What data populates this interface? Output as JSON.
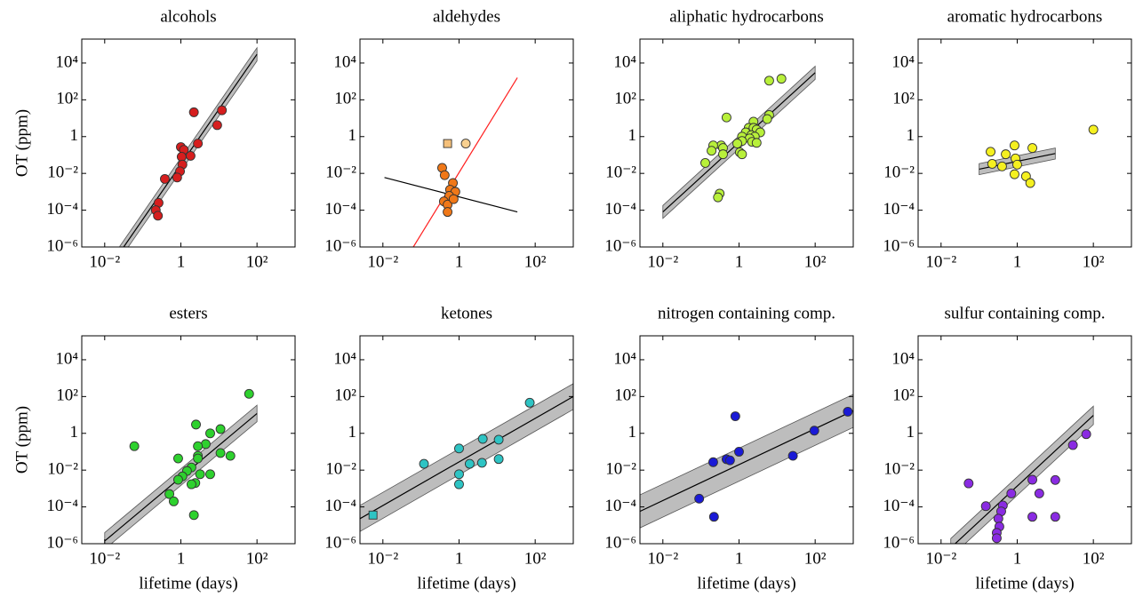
{
  "chart_data": [
    {
      "type": "scatter",
      "title": "alcohols",
      "ylabel": "OT (ppm)",
      "log": true,
      "xlim": [
        0.0025,
        1000
      ],
      "ylim": [
        1e-06,
        200000
      ],
      "xticks": [
        {
          "value": 0.01,
          "label": "10⁻²"
        },
        1,
        {
          "value": 100,
          "label": "10²"
        }
      ],
      "yticks": [
        {
          "value": 1e-06,
          "label": "10⁻⁶"
        },
        {
          "value": 0.0001,
          "label": "10⁻⁴"
        },
        {
          "value": 0.01,
          "label": "10⁻²"
        },
        1,
        {
          "value": 100,
          "label": "10²"
        },
        {
          "value": 10000,
          "label": "10⁴"
        }
      ],
      "points": [
        {
          "marker": "circle",
          "color": "#d61e1e",
          "x": [
            2.2,
            12,
            9,
            2.8,
            1,
            1.2,
            1.8,
            1.05,
            1.1,
            0.95,
            0.8,
            0.38,
            0.26,
            0.22,
            0.25
          ],
          "y": [
            21,
            27,
            4.2,
            0.42,
            0.27,
            0.19,
            0.09,
            0.08,
            0.03,
            0.013,
            0.006,
            0.005,
            0.00025,
            0.0001,
            5e-05
          ]
        }
      ],
      "fit": {
        "color": "#000",
        "x": [
          0.025,
          100
        ],
        "y": [
          5e-07,
          30000
        ],
        "lower": [
          2.2e-07,
          13000
        ],
        "upper": [
          1.1e-06,
          67000
        ]
      }
    },
    {
      "type": "scatter",
      "title": "aldehydes",
      "log": true,
      "xlim": [
        0.0025,
        1000
      ],
      "ylim": [
        1e-06,
        200000
      ],
      "xticks": [
        {
          "value": 0.01,
          "label": "10⁻²"
        },
        1,
        {
          "value": 100,
          "label": "10²"
        }
      ],
      "yticks": [
        {
          "value": 1e-06,
          "label": "10⁻⁶"
        },
        {
          "value": 0.0001,
          "label": "10⁻⁴"
        },
        {
          "value": 0.01,
          "label": "10⁻²"
        },
        1,
        {
          "value": 100,
          "label": "10²"
        },
        {
          "value": 10000,
          "label": "10⁴"
        }
      ],
      "points": [
        {
          "marker": "circle",
          "color": "#f07818",
          "x": [
            0.36,
            0.42,
            0.69,
            0.58,
            0.8,
            0.55,
            0.4,
            0.5,
            0.5,
            0.72
          ],
          "y": [
            0.02,
            0.008,
            0.003,
            0.0013,
            0.001,
            0.0006,
            0.0003,
            0.0002,
            8e-05,
            0.0004
          ]
        },
        {
          "marker": "square",
          "color": "#f5c07a",
          "x": [
            0.5
          ],
          "y": [
            0.42
          ]
        },
        {
          "marker": "circle",
          "color": "#f8d090",
          "x": [
            1.5
          ],
          "y": [
            0.42
          ]
        }
      ],
      "fit": {
        "color": "#000",
        "x": [
          0.011,
          34
        ],
        "y": [
          0.006,
          8e-05
        ]
      },
      "fit2": {
        "color": "#ff2020",
        "x": [
          0.063,
          34
        ],
        "y": [
          1e-06,
          1600
        ]
      }
    },
    {
      "type": "scatter",
      "title": "aliphatic hydrocarbons",
      "log": true,
      "xlim": [
        0.0025,
        1000
      ],
      "ylim": [
        1e-06,
        200000
      ],
      "xticks": [
        {
          "value": 0.01,
          "label": "10⁻²"
        },
        1,
        {
          "value": 100,
          "label": "10²"
        }
      ],
      "yticks": [
        {
          "value": 1e-06,
          "label": "10⁻⁶"
        },
        {
          "value": 0.0001,
          "label": "10⁻⁴"
        },
        {
          "value": 0.01,
          "label": "10⁻²"
        },
        1,
        {
          "value": 100,
          "label": "10²"
        },
        {
          "value": 10000,
          "label": "10⁴"
        }
      ],
      "points": [
        {
          "marker": "circle",
          "color": "#b8f03a",
          "x": [
            0.47,
            6.2,
            5.5,
            2.4,
            1.8,
            2.4,
            2.9,
            3.6,
            1.5,
            2.1,
            1.2,
            2.6,
            1.9,
            1.2,
            2.2,
            2.9,
            0.9,
            0.34,
            0.21,
            0.38,
            0.19,
            0.38,
            1.05,
            1.2,
            0.13,
            0.31,
            0.28,
            6.2,
            13
          ],
          "y": [
            11,
            15,
            9,
            6.5,
            3,
            3,
            2.4,
            1.7,
            1.7,
            1.2,
            1,
            1,
            0.8,
            0.58,
            0.52,
            0.46,
            0.42,
            0.33,
            0.33,
            0.24,
            0.17,
            0.11,
            0.14,
            0.11,
            0.037,
            0.0008,
            0.0005,
            1100,
            1400
          ]
        }
      ],
      "fit": {
        "color": "#000",
        "x": [
          0.01,
          100
        ],
        "y": [
          8e-05,
          3000
        ],
        "lower": [
          3.6e-05,
          1300
        ],
        "upper": [
          0.00018,
          6700
        ]
      }
    },
    {
      "type": "scatter",
      "title": "aromatic hydrocarbons",
      "log": true,
      "xlim": [
        0.0025,
        1000
      ],
      "ylim": [
        1e-06,
        200000
      ],
      "xticks": [
        {
          "value": 0.01,
          "label": "10⁻²"
        },
        1,
        {
          "value": 100,
          "label": "10²"
        }
      ],
      "yticks": [
        {
          "value": 1e-06,
          "label": "10⁻⁶"
        },
        {
          "value": 0.0001,
          "label": "10⁻⁴"
        },
        {
          "value": 0.01,
          "label": "10⁻²"
        },
        1,
        {
          "value": 100,
          "label": "10²"
        },
        {
          "value": 10000,
          "label": "10⁴"
        }
      ],
      "points": [
        {
          "marker": "circle",
          "color": "#f5f020",
          "x": [
            100,
            0.2,
            0.85,
            2.5,
            0.5,
            0.9,
            0.22,
            0.4,
            1,
            0.85,
            1.7,
            2.2
          ],
          "y": [
            2.4,
            0.15,
            0.33,
            0.24,
            0.11,
            0.065,
            0.033,
            0.024,
            0.03,
            0.009,
            0.007,
            0.003
          ]
        }
      ],
      "fit": {
        "color": "#000",
        "x": [
          0.1,
          10
        ],
        "y": [
          0.017,
          0.12
        ],
        "lower": [
          0.0085,
          0.06
        ],
        "upper": [
          0.034,
          0.24
        ]
      }
    },
    {
      "type": "scatter",
      "title": "esters",
      "ylabel": "OT (ppm)",
      "xlabel": "lifetime (days)",
      "log": true,
      "xlim": [
        0.0025,
        1000
      ],
      "ylim": [
        1e-06,
        200000
      ],
      "xticks": [
        {
          "value": 0.01,
          "label": "10⁻²"
        },
        1,
        {
          "value": 100,
          "label": "10²"
        }
      ],
      "yticks": [
        {
          "value": 1e-06,
          "label": "10⁻⁶"
        },
        {
          "value": 0.0001,
          "label": "10⁻⁴"
        },
        {
          "value": 0.01,
          "label": "10⁻²"
        },
        1,
        {
          "value": 100,
          "label": "10²"
        },
        {
          "value": 10000,
          "label": "10⁴"
        }
      ],
      "points": [
        {
          "marker": "circle",
          "color": "#2ed12e",
          "x": [
            62,
            11,
            2.5,
            5.9,
            4.5,
            2.8,
            2.8,
            0.06,
            0.85,
            2.8,
            11,
            20,
            5.9,
            3.2,
            1.9,
            1.45,
            1.1,
            0.85,
            2.4,
            1.9,
            0.5,
            0.65,
            2.2
          ],
          "y": [
            140,
            1.7,
            3,
            1,
            0.26,
            0.2,
            0.06,
            0.2,
            0.043,
            0.043,
            0.085,
            0.06,
            0.006,
            0.006,
            0.014,
            0.009,
            0.0046,
            0.003,
            0.002,
            0.0017,
            0.0005,
            0.0002,
            3.6e-05
          ]
        }
      ],
      "fit": {
        "color": "#000",
        "x": [
          0.01,
          100
        ],
        "y": [
          1.4e-06,
          12
        ],
        "lower": [
          5e-07,
          4.3
        ],
        "upper": [
          4e-06,
          34
        ]
      }
    },
    {
      "type": "scatter",
      "title": "ketones",
      "xlabel": "lifetime (days)",
      "log": true,
      "xlim": [
        0.0025,
        1000
      ],
      "ylim": [
        1e-06,
        200000
      ],
      "xticks": [
        {
          "value": 0.01,
          "label": "10⁻²"
        },
        1,
        {
          "value": 100,
          "label": "10²"
        }
      ],
      "yticks": [
        {
          "value": 1e-06,
          "label": "10⁻⁶"
        },
        {
          "value": 0.0001,
          "label": "10⁻⁴"
        },
        {
          "value": 0.01,
          "label": "10⁻²"
        },
        1,
        {
          "value": 100,
          "label": "10²"
        },
        {
          "value": 10000,
          "label": "10⁴"
        }
      ],
      "points": [
        {
          "marker": "circle",
          "color": "#2ec4c4",
          "x": [
            72,
            4.2,
            11,
            1,
            0.12,
            1.9,
            4,
            11,
            1,
            1
          ],
          "y": [
            46,
            0.5,
            0.45,
            0.15,
            0.022,
            0.022,
            0.025,
            0.04,
            0.006,
            0.0017
          ]
        },
        {
          "marker": "square",
          "color": "#2ec4c4",
          "x": [
            0.0055
          ],
          "y": [
            3.6e-05
          ]
        }
      ],
      "fit": {
        "color": "#000",
        "x": [
          0.0025,
          1000
        ],
        "y": [
          2.3e-05,
          100
        ],
        "lower": [
          4.6e-06,
          20
        ],
        "upper": [
          0.00012,
          500
        ]
      }
    },
    {
      "type": "scatter",
      "title": "nitrogen containing comp.",
      "xlabel": "lifetime (days)",
      "log": true,
      "xlim": [
        0.0025,
        1000
      ],
      "ylim": [
        1e-06,
        200000
      ],
      "xticks": [
        {
          "value": 0.01,
          "label": "10⁻²"
        },
        1,
        {
          "value": 100,
          "label": "10²"
        }
      ],
      "yticks": [
        {
          "value": 1e-06,
          "label": "10⁻⁶"
        },
        {
          "value": 0.0001,
          "label": "10⁻⁴"
        },
        {
          "value": 0.01,
          "label": "10⁻²"
        },
        1,
        {
          "value": 100,
          "label": "10²"
        },
        {
          "value": 10000,
          "label": "10⁴"
        }
      ],
      "points": [
        {
          "marker": "circle",
          "color": "#1a1ad6",
          "x": [
            0.8,
            720,
            95,
            1,
            0.47,
            0.58,
            0.21,
            26,
            0.09,
            0.22
          ],
          "y": [
            8.5,
            15,
            1.4,
            0.1,
            0.039,
            0.034,
            0.027,
            0.06,
            0.00028,
            2.9e-05
          ]
        }
      ],
      "fit": {
        "color": "#000",
        "x": [
          0.0025,
          1000
        ],
        "y": [
          5.7e-05,
          17
        ],
        "lower": [
          7.2e-06,
          2.1
        ],
        "upper": [
          0.00045,
          130
        ]
      }
    },
    {
      "type": "scatter",
      "title": "sulfur containing comp.",
      "xlabel": "lifetime (days)",
      "log": true,
      "xlim": [
        0.0025,
        1000
      ],
      "ylim": [
        1e-06,
        200000
      ],
      "xticks": [
        {
          "value": 0.01,
          "label": "10⁻²"
        },
        1,
        {
          "value": 100,
          "label": "10²"
        }
      ],
      "yticks": [
        {
          "value": 1e-06,
          "label": "10⁻⁶"
        },
        {
          "value": 0.0001,
          "label": "10⁻⁴"
        },
        {
          "value": 0.01,
          "label": "10⁻²"
        },
        1,
        {
          "value": 100,
          "label": "10²"
        },
        {
          "value": 10000,
          "label": "10⁴"
        }
      ],
      "points": [
        {
          "marker": "circle",
          "color": "#8a2be2",
          "x": [
            65,
            29,
            0.053,
            2.5,
            10,
            0.7,
            3.8,
            0.15,
            0.42,
            0.38,
            0.32,
            0.34,
            0.29,
            0.29,
            2.5,
            10
          ],
          "y": [
            0.9,
            0.23,
            0.0019,
            0.003,
            0.0029,
            0.00054,
            0.00054,
            0.00011,
            0.00012,
            5.7e-05,
            2.3e-05,
            8.5e-06,
            3.9e-06,
            2e-06,
            2.9e-05,
            2.9e-05
          ]
        }
      ],
      "fit": {
        "color": "#000",
        "x": [
          0.018,
          100
        ],
        "y": [
          6e-07,
          9.5
        ],
        "lower": [
          1.9e-07,
          3
        ],
        "upper": [
          1.9e-06,
          30
        ]
      }
    }
  ]
}
